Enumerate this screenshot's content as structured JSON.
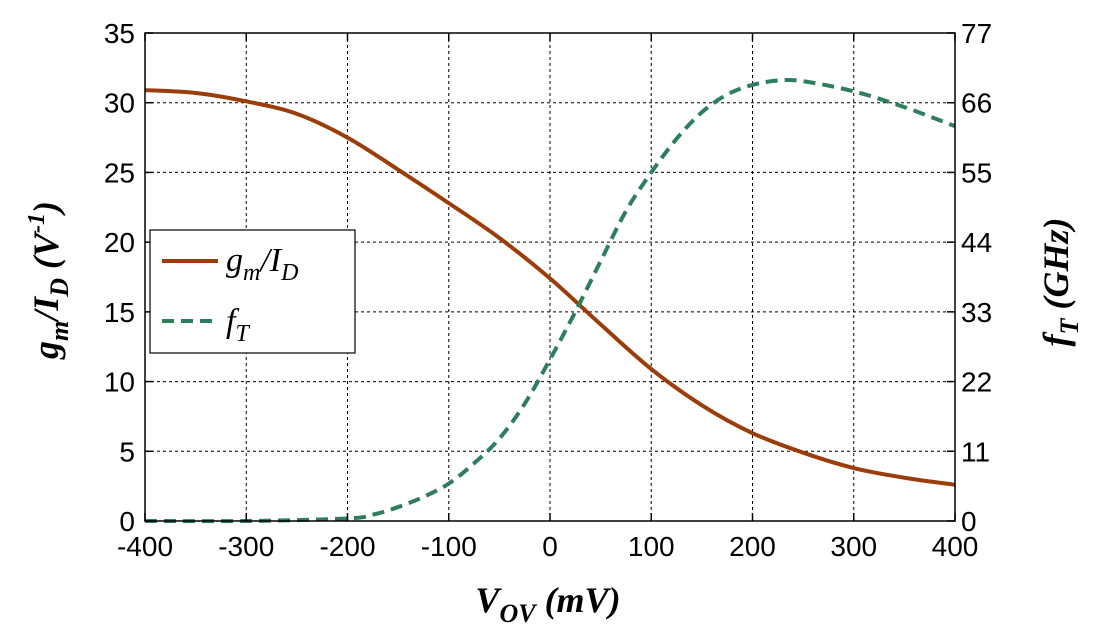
{
  "chart_data": {
    "type": "line",
    "x_axis": {
      "label": "V",
      "label_sub": "OV",
      "label_unit": " (mV)",
      "range": [
        -400,
        400
      ],
      "ticks": [
        "-400",
        "-300",
        "-200",
        "-100",
        "0",
        "100",
        "200",
        "300",
        "400"
      ]
    },
    "y_axis_left": {
      "label": "g",
      "label_sub1": "m",
      "label_mid": "/I",
      "label_sub2": "D",
      "label_unit": " (V",
      "label_sup": "-1",
      "label_close": ")",
      "range": [
        0,
        35
      ],
      "ticks": [
        "0",
        "5",
        "10",
        "15",
        "20",
        "25",
        "30",
        "35"
      ]
    },
    "y_axis_right": {
      "label": "f",
      "label_sub": "T",
      "label_unit": " (GHz)",
      "range": [
        0,
        77
      ],
      "ticks": [
        "0",
        "11",
        "22",
        "33",
        "44",
        "55",
        "66",
        "77"
      ]
    },
    "grid": true,
    "legend_position": "center-left",
    "series": [
      {
        "name": "gm/ID",
        "legend_main": "g",
        "legend_sub1": "m",
        "legend_mid": "/I",
        "legend_sub2": "D",
        "axis": "left",
        "color": "#9b3d0a",
        "style": "solid",
        "x": [
          -400,
          -350,
          -300,
          -250,
          -200,
          -150,
          -100,
          -50,
          0,
          50,
          100,
          150,
          200,
          250,
          300,
          350,
          400
        ],
        "y": [
          30.9,
          30.7,
          30.1,
          29.2,
          27.5,
          25.2,
          22.8,
          20.3,
          17.4,
          14.1,
          10.9,
          8.3,
          6.3,
          4.9,
          3.8,
          3.1,
          2.6
        ]
      },
      {
        "name": "fT",
        "legend_main": "f",
        "legend_sub1": "T",
        "axis": "right",
        "color": "#2e7d5b",
        "style": "dashed",
        "x": [
          -400,
          -300,
          -200,
          -175,
          -150,
          -125,
          -100,
          -75,
          -50,
          -25,
          0,
          25,
          50,
          75,
          100,
          125,
          150,
          175,
          200,
          225,
          250,
          300,
          350,
          400
        ],
        "y": [
          0,
          0,
          0.4,
          1.0,
          2.2,
          3.8,
          5.9,
          9.1,
          13.0,
          18.5,
          25.5,
          33.0,
          41.0,
          48.9,
          55.0,
          60.3,
          64.5,
          67.3,
          68.8,
          69.5,
          69.4,
          67.8,
          65.3,
          62.3
        ]
      }
    ]
  }
}
